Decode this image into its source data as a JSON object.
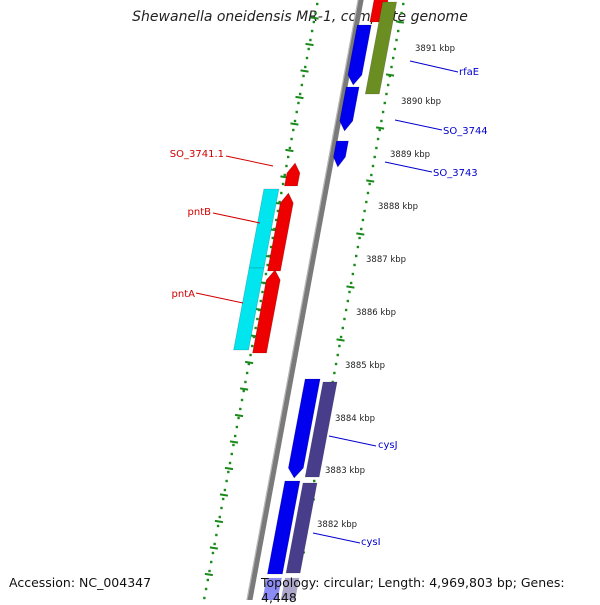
{
  "title": "Shewanella oneidensis MR-1, complete genome",
  "footer": {
    "accession": "Accession: NC_004347",
    "topology": "Topology: circular; Length: 4,969,803 bp; Genes: 4,448"
  },
  "colors": {
    "background": "#ffffff",
    "backbone": "#7a7a7a",
    "tick": "#1a8a1a",
    "forward_label": "#0000cc",
    "reverse_label": "#d00000",
    "gene_blue": "#0000ee",
    "gene_navy": "#483d8b",
    "gene_olive": "#6b8e23",
    "gene_red": "#ee0000",
    "gene_cyan": "#00e5ee"
  },
  "kbp_labels": [
    "3891 kbp",
    "3890 kbp",
    "3889 kbp",
    "3888 kbp",
    "3887 kbp",
    "3886 kbp",
    "3885 kbp",
    "3884 kbp",
    "3883 kbp",
    "3882 kbp"
  ],
  "genes": [
    {
      "label": "rfaE",
      "strand": "forward",
      "color": "olive"
    },
    {
      "label": "SO_3744",
      "strand": "forward",
      "color": "blue"
    },
    {
      "label": "SO_3743",
      "strand": "forward",
      "color": "blue"
    },
    {
      "label": "SO_3741.1",
      "strand": "reverse",
      "color": "red"
    },
    {
      "label": "pntB",
      "strand": "reverse",
      "color": "red"
    },
    {
      "label": "pntA",
      "strand": "reverse",
      "color": "red"
    },
    {
      "label": "cysJ",
      "strand": "forward",
      "color": "navy"
    },
    {
      "label": "cysI",
      "strand": "forward",
      "color": "navy"
    }
  ],
  "icons": [
    "genome-backbone",
    "gene-arrow",
    "tick-mark"
  ]
}
